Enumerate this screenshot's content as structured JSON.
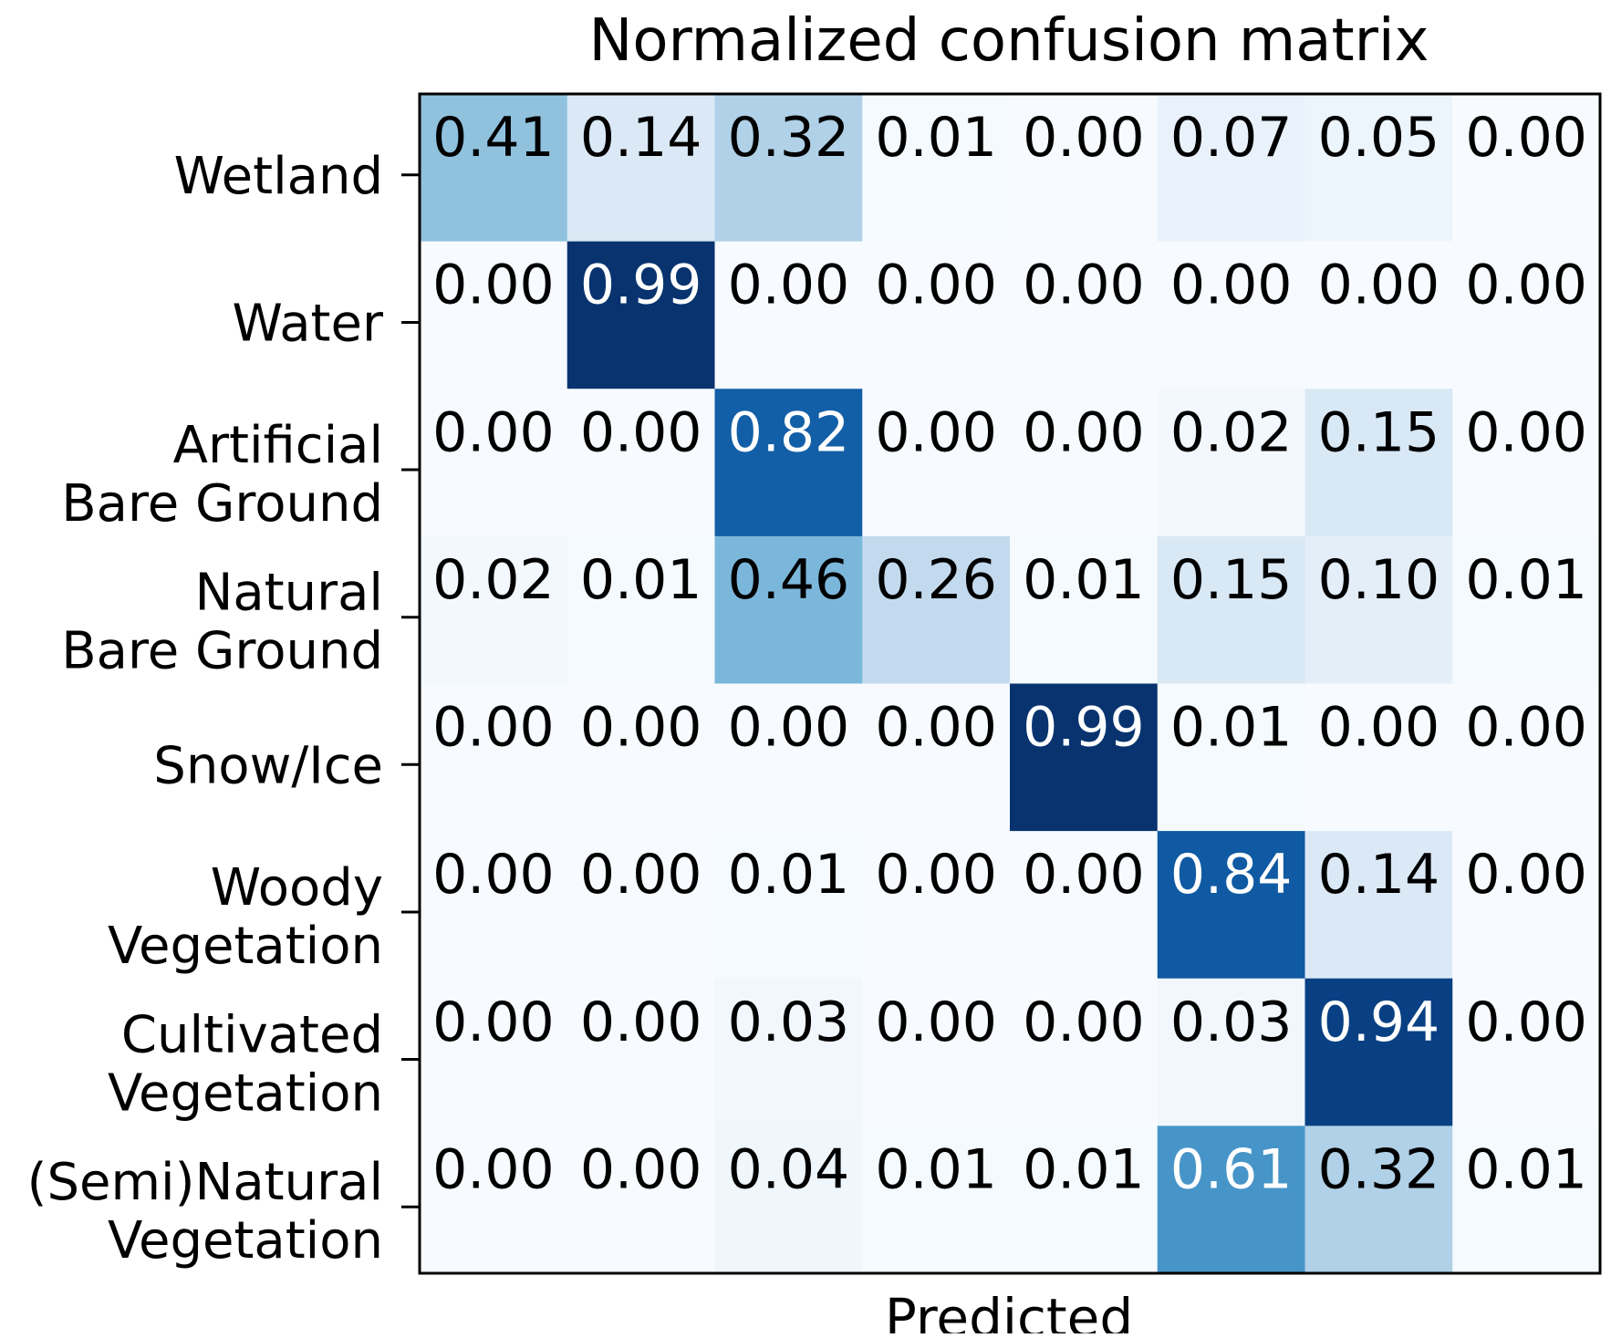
{
  "chart_data": {
    "type": "heatmap",
    "title": "Normalized confusion matrix",
    "xlabel": "Predicted",
    "ylabel": "",
    "colormap": "Blues",
    "color_range": [
      0,
      1
    ],
    "row_labels": [
      [
        "Wetland"
      ],
      [
        "Water"
      ],
      [
        "Artificial",
        "Bare Ground"
      ],
      [
        "Natural",
        "Bare Ground"
      ],
      [
        "Snow/Ice"
      ],
      [
        "Woody",
        "Vegetation"
      ],
      [
        "Cultivated",
        "Vegetation"
      ],
      [
        "(Semi)Natural",
        "Vegetation"
      ]
    ],
    "values": [
      [
        0.41,
        0.14,
        0.32,
        0.01,
        0.0,
        0.07,
        0.05,
        0.0
      ],
      [
        0.0,
        0.99,
        0.0,
        0.0,
        0.0,
        0.0,
        0.0,
        0.0
      ],
      [
        0.0,
        0.0,
        0.82,
        0.0,
        0.0,
        0.02,
        0.15,
        0.0
      ],
      [
        0.02,
        0.01,
        0.46,
        0.26,
        0.01,
        0.15,
        0.1,
        0.01
      ],
      [
        0.0,
        0.0,
        0.0,
        0.0,
        0.99,
        0.01,
        0.0,
        0.0
      ],
      [
        0.0,
        0.0,
        0.01,
        0.0,
        0.0,
        0.84,
        0.14,
        0.0
      ],
      [
        0.0,
        0.0,
        0.03,
        0.0,
        0.0,
        0.03,
        0.94,
        0.0
      ],
      [
        0.0,
        0.0,
        0.04,
        0.01,
        0.01,
        0.61,
        0.32,
        0.01
      ]
    ],
    "label_text_color_light": "#ffffff",
    "label_text_color_dark": "#000000",
    "frame_color": "#000000"
  }
}
